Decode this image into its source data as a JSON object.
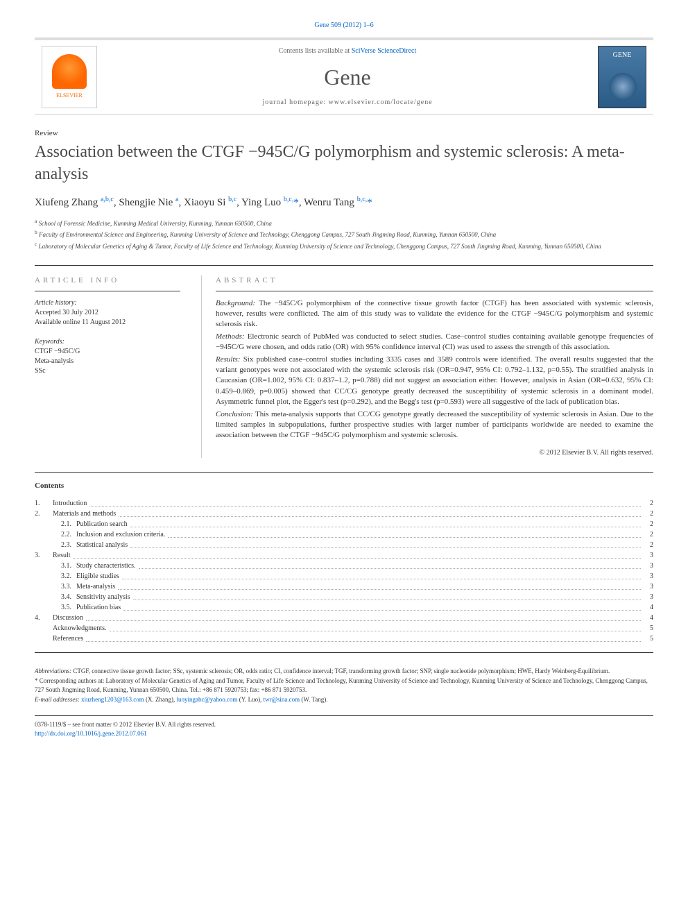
{
  "journal_ref": "Gene 509 (2012) 1–6",
  "header": {
    "contents_avail_prefix": "Contents lists available at ",
    "contents_avail_link": "SciVerse ScienceDirect",
    "journal_name": "Gene",
    "homepage_label": "journal homepage: www.elsevier.com/locate/gene",
    "elsevier_text": "ELSEVIER",
    "cover_text": "GENE"
  },
  "article_type": "Review",
  "title": "Association between the CTGF −945C/G polymorphism and systemic sclerosis: A meta-analysis",
  "authors_html": "Xiufeng Zhang <sup><a>a,b,c</a></sup>, Shengjie Nie <sup><a>a</a></sup>, Xiaoyu Si <sup><a>b,c</a></sup>, Ying Luo <sup><a>b,c,</a></sup><a>*</a>, Wenru Tang <sup><a>b,c,</a></sup><a>*</a>",
  "affiliations": [
    {
      "sup": "a",
      "text": "School of Forensic Medicine, Kunming Medical University, Kunming, Yunnan 650500, China"
    },
    {
      "sup": "b",
      "text": "Faculty of Environmental Science and Engineering, Kunming University of Science and Technology, Chenggong Campus, 727 South Jingming Road, Kunming, Yunnan 650500, China"
    },
    {
      "sup": "c",
      "text": "Laboratory of Molecular Genetics of Aging & Tumor, Faculty of Life Science and Technology, Kunming University of Science and Technology, Chenggong Campus, 727 South Jingming Road, Kunming, Yunnan 650500, China"
    }
  ],
  "article_info": {
    "heading": "article info",
    "history_label": "Article history:",
    "accepted": "Accepted 30 July 2012",
    "online": "Available online 11 August 2012",
    "keywords_label": "Keywords:",
    "keywords": [
      "CTGF −945C/G",
      "Meta-analysis",
      "SSc"
    ]
  },
  "abstract": {
    "heading": "abstract",
    "background_label": "Background:",
    "background": "The −945C/G polymorphism of the connective tissue growth factor (CTGF) has been associated with systemic sclerosis, however, results were conflicted. The aim of this study was to validate the evidence for the CTGF −945C/G polymorphism and systemic sclerosis risk.",
    "methods_label": "Methods:",
    "methods": "Electronic search of PubMed was conducted to select studies. Case–control studies containing available genotype frequencies of −945C/G were chosen, and odds ratio (OR) with 95% confidence interval (CI) was used to assess the strength of this association.",
    "results_label": "Results:",
    "results": "Six published case–control studies including 3335 cases and 3589 controls were identified. The overall results suggested that the variant genotypes were not associated with the systemic sclerosis risk (OR=0.947, 95% CI: 0.792–1.132, p=0.55). The stratified analysis in Caucasian (OR=1.002, 95% CI: 0.837–1.2, p=0.788) did not suggest an association either. However, analysis in Asian (OR=0.632, 95% CI: 0.459–0.869, p=0.005) showed that CC/CG genotype greatly decreased the susceptibility of systemic sclerosis in a dominant model. Asymmetric funnel plot, the Egger's test (p=0.292), and the Begg's test (p=0.593) were all suggestive of the lack of publication bias.",
    "conclusion_label": "Conclusion:",
    "conclusion": "This meta-analysis supports that CC/CG genotype greatly decreased the susceptibility of systemic sclerosis in Asian. Due to the limited samples in subpopulations, further prospective studies with larger number of participants worldwide are needed to examine the association between the CTGF −945C/G polymorphism and systemic sclerosis.",
    "copyright": "© 2012 Elsevier B.V. All rights reserved."
  },
  "contents": {
    "heading": "Contents",
    "items": [
      {
        "num": "1.",
        "sub": "",
        "label": "Introduction",
        "page": "2"
      },
      {
        "num": "2.",
        "sub": "",
        "label": "Materials and methods",
        "page": "2"
      },
      {
        "num": "",
        "sub": "2.1.",
        "label": "Publication search",
        "page": "2"
      },
      {
        "num": "",
        "sub": "2.2.",
        "label": "Inclusion and exclusion criteria.",
        "page": "2"
      },
      {
        "num": "",
        "sub": "2.3.",
        "label": "Statistical analysis",
        "page": "2"
      },
      {
        "num": "3.",
        "sub": "",
        "label": "Result",
        "page": "3"
      },
      {
        "num": "",
        "sub": "3.1.",
        "label": "Study characteristics.",
        "page": "3"
      },
      {
        "num": "",
        "sub": "3.2.",
        "label": "Eligible studies",
        "page": "3"
      },
      {
        "num": "",
        "sub": "3.3.",
        "label": "Meta-analysis",
        "page": "3"
      },
      {
        "num": "",
        "sub": "3.4.",
        "label": "Sensitivity analysis",
        "page": "3"
      },
      {
        "num": "",
        "sub": "3.5.",
        "label": "Publication bias",
        "page": "4"
      },
      {
        "num": "4.",
        "sub": "",
        "label": "Discussion",
        "page": "4"
      },
      {
        "num": "",
        "sub": "",
        "label": "Acknowledgments.",
        "page": "5"
      },
      {
        "num": "",
        "sub": "",
        "label": "References",
        "page": "5"
      }
    ]
  },
  "footnotes": {
    "abbrev_label": "Abbreviations:",
    "abbrev": "CTGF, connective tissue growth factor; SSc, systemic sclerosis; OR, odds ratio; CI, confidence interval; TGF, transforming growth factor; SNP, single nucleotide polymorphism; HWE, Hardy Weinberg-Equilibrium.",
    "corr_marker": "*",
    "corr": "Corresponding authors at: Laboratory of Molecular Genetics of Aging and Tumor, Faculty of Life Science and Technology, Kunming University of Science and Technology, Kunming University of Science and Technology, Chenggong Campus, 727 South Jingming Road, Kunming, Yunnan 650500, China. Tel.: +86 871 5920753; fax: +86 871 5920753.",
    "email_label": "E-mail addresses:",
    "emails": [
      {
        "addr": "xiuzheng1203@163.com",
        "who": "(X. Zhang),"
      },
      {
        "addr": "luoyingabc@yahoo.com",
        "who": "(Y. Luo),"
      },
      {
        "addr": "twr@sina.com",
        "who": "(W. Tang)."
      }
    ]
  },
  "footer": {
    "line1": "0378-1119/$ – see front matter © 2012 Elsevier B.V. All rights reserved.",
    "doi": "http://dx.doi.org/10.1016/j.gene.2012.07.061"
  },
  "colors": {
    "link": "#0066cc",
    "orange": "#ff6600",
    "gray_text": "#888"
  }
}
